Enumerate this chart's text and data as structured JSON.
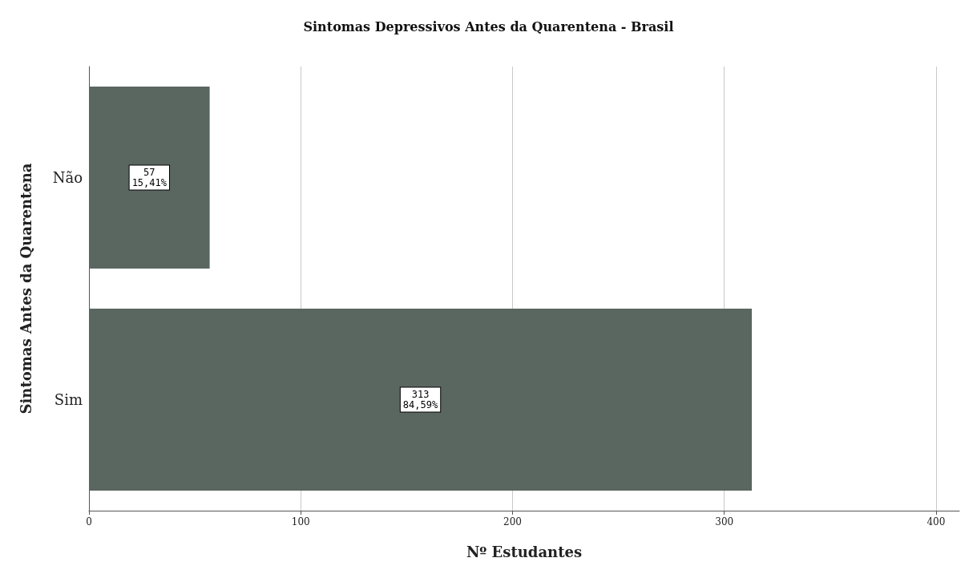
{
  "chart_data": {
    "type": "bar",
    "orientation": "horizontal",
    "title": "Sintomas Depressivos Antes da Quarentena - Brasil",
    "xlabel": "Nº Estudantes",
    "ylabel": "Sintomas Antes da Quarentena",
    "categories": [
      "Não",
      "Sim"
    ],
    "values": [
      57,
      313
    ],
    "value_labels": [
      "57\n15,41%",
      "313\n84,59%"
    ],
    "color": "#5a6660",
    "xlim": [
      0,
      411
    ],
    "xticks": [
      0,
      100,
      200,
      300,
      400
    ],
    "grid": "x"
  }
}
